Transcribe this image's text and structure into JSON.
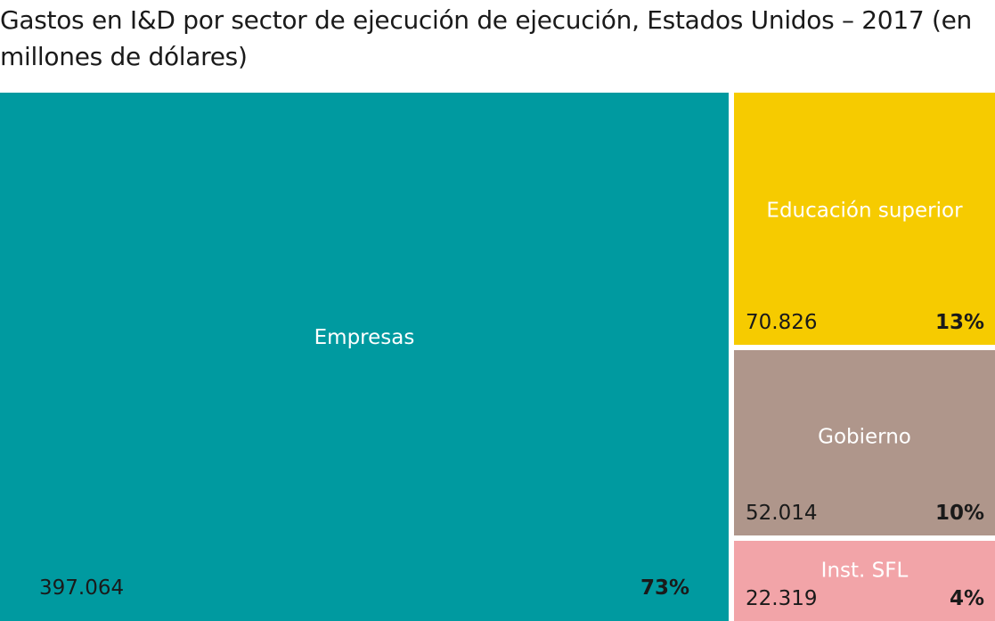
{
  "chart_data": {
    "type": "treemap",
    "title": "Gastos en I&D por sector de ejecución de ejecución, Estados Unidos – 2017 (en millones de dólares)",
    "series": [
      {
        "key": "empresas",
        "name": "Empresas",
        "value_label": "397.064",
        "value": 397064,
        "percent_label": "73%",
        "percent": 73,
        "color": "#009aa0"
      },
      {
        "key": "educacion",
        "name": "Educación superior",
        "value_label": "70.826",
        "value": 70826,
        "percent_label": "13%",
        "percent": 13,
        "color": "#f6cb00"
      },
      {
        "key": "gobierno",
        "name": "Gobierno",
        "value_label": "52.014",
        "value": 52014,
        "percent_label": "10%",
        "percent": 10,
        "color": "#af968b"
      },
      {
        "key": "sfl",
        "name": "Inst. SFL",
        "value_label": "22.319",
        "value": 22319,
        "percent_label": "4%",
        "percent": 4,
        "color": "#f2a4a8"
      }
    ]
  }
}
